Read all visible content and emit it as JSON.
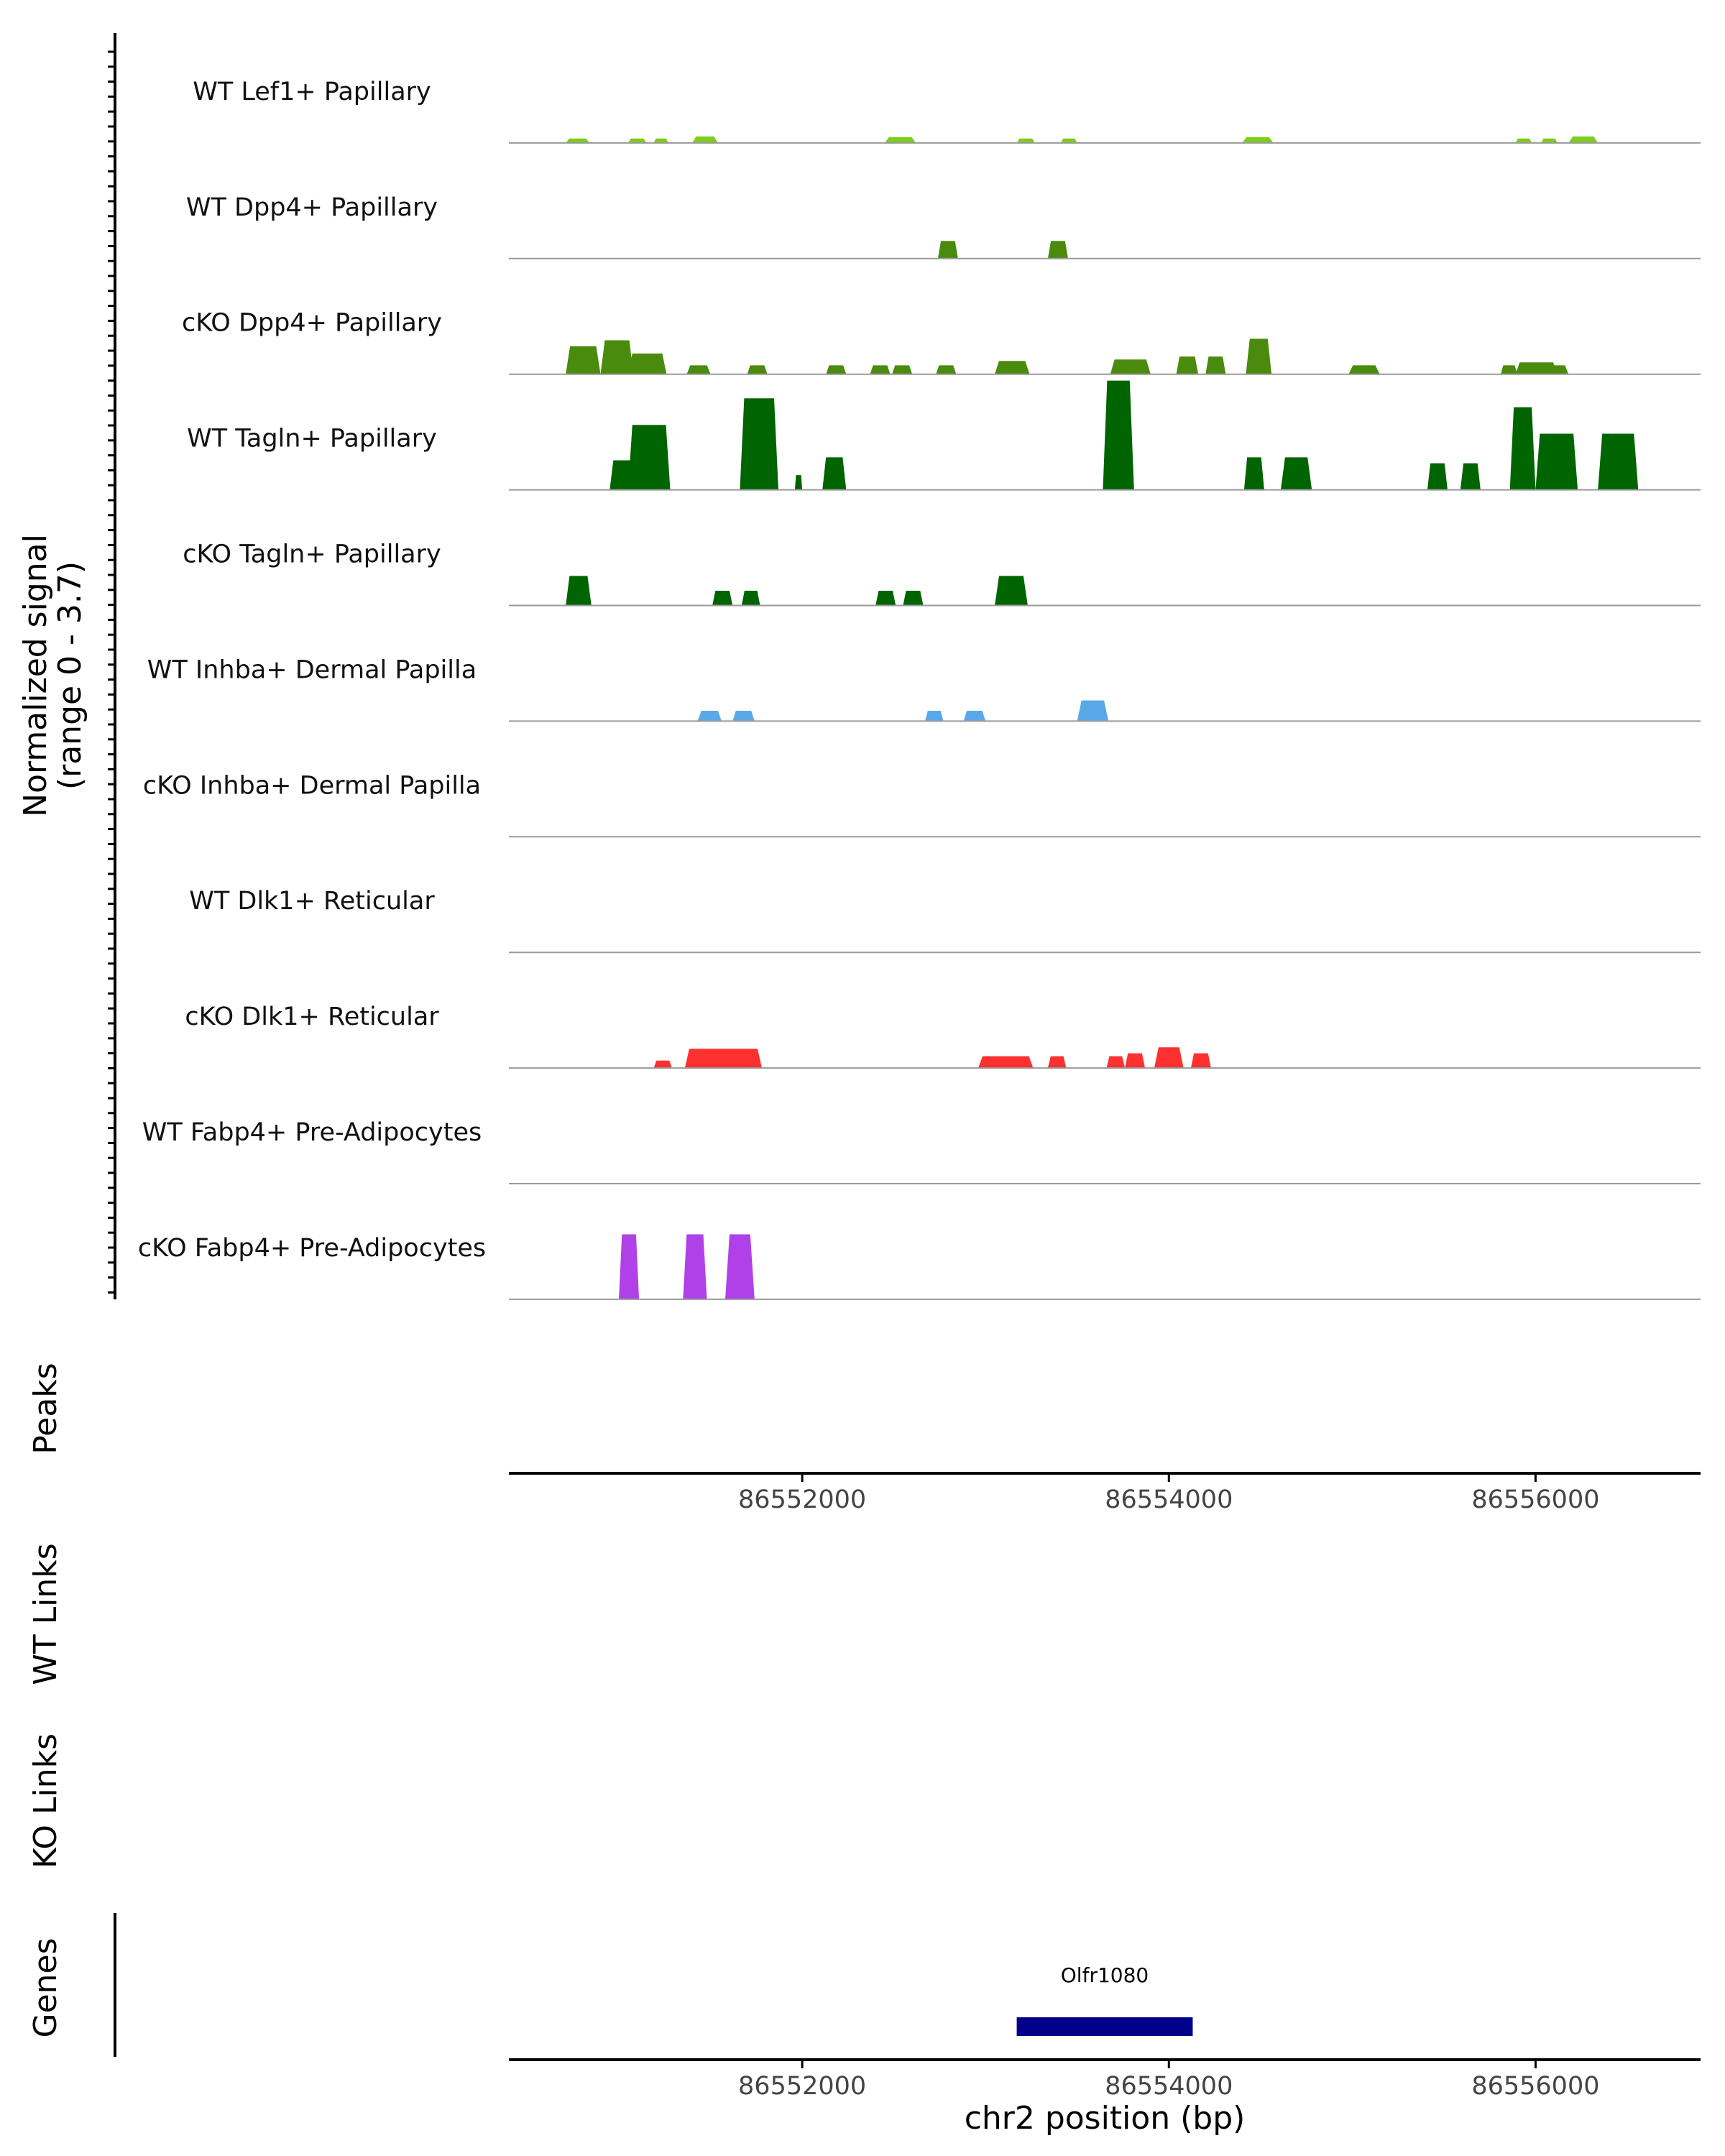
{
  "chart_data": {
    "type": "area",
    "title": "",
    "region": {
      "chrom": "chr2",
      "start": 86550400,
      "end": 86556900
    },
    "xlabel": "chr2 position (bp)",
    "x_ticks": [
      86552000,
      86554000,
      86556000
    ],
    "x_tick_labels": [
      "86552000",
      "86554000",
      "86556000"
    ],
    "ylabel_line1": "Normalized signal",
    "ylabel_line2": "(range 0 - 3.7)",
    "ylim": [
      0,
      3.7
    ],
    "peaks_label": "Peaks",
    "wt_links_label": "WT Links",
    "ko_links_label": "KO Links",
    "genes_label": "Genes",
    "genes": [
      {
        "name": "Olfr1080",
        "start": 86553170,
        "end": 86554130,
        "color": "#00008B"
      }
    ],
    "tracks": [
      {
        "name": "WT Lef1+ Papillary",
        "color": "#7CCD1C",
        "peaks": [
          [
            86550710,
            86550840,
            0.15
          ],
          [
            86551050,
            86551150,
            0.15
          ],
          [
            86551190,
            86551270,
            0.15
          ],
          [
            86551400,
            86551540,
            0.22
          ],
          [
            86552450,
            86552620,
            0.2
          ],
          [
            86553170,
            86553270,
            0.15
          ],
          [
            86553410,
            86553500,
            0.15
          ],
          [
            86554400,
            86554570,
            0.2
          ],
          [
            86555890,
            86555980,
            0.15
          ],
          [
            86556030,
            86556120,
            0.15
          ],
          [
            86556180,
            86556340,
            0.22
          ]
        ]
      },
      {
        "name": "WT Dpp4+ Papillary",
        "color": "#4A8A0C",
        "peaks": [
          [
            86552740,
            86552850,
            0.6
          ],
          [
            86553340,
            86553450,
            0.6
          ]
        ]
      },
      {
        "name": "cKO Dpp4+ Papillary",
        "color": "#4A8A0C",
        "peaks": [
          [
            86550710,
            86550900,
            0.95
          ],
          [
            86550900,
            86551080,
            1.15
          ],
          [
            86551050,
            86551260,
            0.7
          ],
          [
            86551370,
            86551500,
            0.3
          ],
          [
            86551700,
            86551810,
            0.3
          ],
          [
            86552130,
            86552240,
            0.3
          ],
          [
            86552370,
            86552480,
            0.3
          ],
          [
            86552490,
            86552600,
            0.3
          ],
          [
            86552730,
            86552840,
            0.3
          ],
          [
            86553050,
            86553240,
            0.45
          ],
          [
            86553680,
            86553900,
            0.5
          ],
          [
            86554040,
            86554160,
            0.6
          ],
          [
            86554200,
            86554310,
            0.6
          ],
          [
            86554420,
            86554560,
            1.2
          ],
          [
            86554980,
            86555150,
            0.3
          ],
          [
            86555810,
            86555900,
            0.3
          ],
          [
            86555890,
            86556120,
            0.4
          ],
          [
            86556050,
            86556180,
            0.3
          ]
        ]
      },
      {
        "name": "WT Tagln+ Papillary",
        "color": "#006400",
        "peaks": [
          [
            86550950,
            86551080,
            1.0
          ],
          [
            86551050,
            86551280,
            2.2
          ],
          [
            86551660,
            86551870,
            3.1
          ],
          [
            86551960,
            86552000,
            0.5
          ],
          [
            86552110,
            86552240,
            1.1
          ],
          [
            86553640,
            86553810,
            3.7
          ],
          [
            86554410,
            86554520,
            1.1
          ],
          [
            86554610,
            86554780,
            1.1
          ],
          [
            86555410,
            86555520,
            0.9
          ],
          [
            86555590,
            86555700,
            0.9
          ],
          [
            86555860,
            86556000,
            2.8
          ],
          [
            86556000,
            86556230,
            1.9
          ],
          [
            86556340,
            86556560,
            1.9
          ]
        ]
      },
      {
        "name": "cKO Tagln+ Papillary",
        "color": "#006400",
        "peaks": [
          [
            86550710,
            86550850,
            1.0
          ],
          [
            86551510,
            86551620,
            0.5
          ],
          [
            86551670,
            86551770,
            0.5
          ],
          [
            86552400,
            86552510,
            0.5
          ],
          [
            86552550,
            86552660,
            0.5
          ],
          [
            86553050,
            86553230,
            1.0
          ]
        ]
      },
      {
        "name": "WT Inhba+ Dermal Papilla",
        "color": "#5AA8E8",
        "peaks": [
          [
            86551430,
            86551560,
            0.35
          ],
          [
            86551620,
            86551740,
            0.35
          ],
          [
            86552670,
            86552770,
            0.35
          ],
          [
            86552880,
            86553000,
            0.35
          ],
          [
            86553500,
            86553670,
            0.7
          ]
        ]
      },
      {
        "name": "cKO Inhba+ Dermal Papilla",
        "color": "#5AA8E8",
        "peaks": []
      },
      {
        "name": "WT Dlk1+ Reticular",
        "color": "#FF3030",
        "peaks": []
      },
      {
        "name": "cKO Dlk1+ Reticular",
        "color": "#FF3030",
        "peaks": [
          [
            86551190,
            86551290,
            0.25
          ],
          [
            86551360,
            86551780,
            0.65
          ],
          [
            86552960,
            86553260,
            0.4
          ],
          [
            86553340,
            86553440,
            0.4
          ],
          [
            86553660,
            86553760,
            0.4
          ],
          [
            86553760,
            86553870,
            0.5
          ],
          [
            86553920,
            86554080,
            0.7
          ],
          [
            86554120,
            86554230,
            0.5
          ]
        ]
      },
      {
        "name": "WT Fabp4+ Pre-Adipocytes",
        "color": "#B041E8",
        "peaks": []
      },
      {
        "name": "cKO Fabp4+ Pre-Adipocytes",
        "color": "#B041E8",
        "peaks": [
          [
            86551000,
            86551110,
            2.2
          ],
          [
            86551350,
            86551480,
            2.2
          ],
          [
            86551580,
            86551740,
            2.2
          ]
        ]
      }
    ]
  }
}
